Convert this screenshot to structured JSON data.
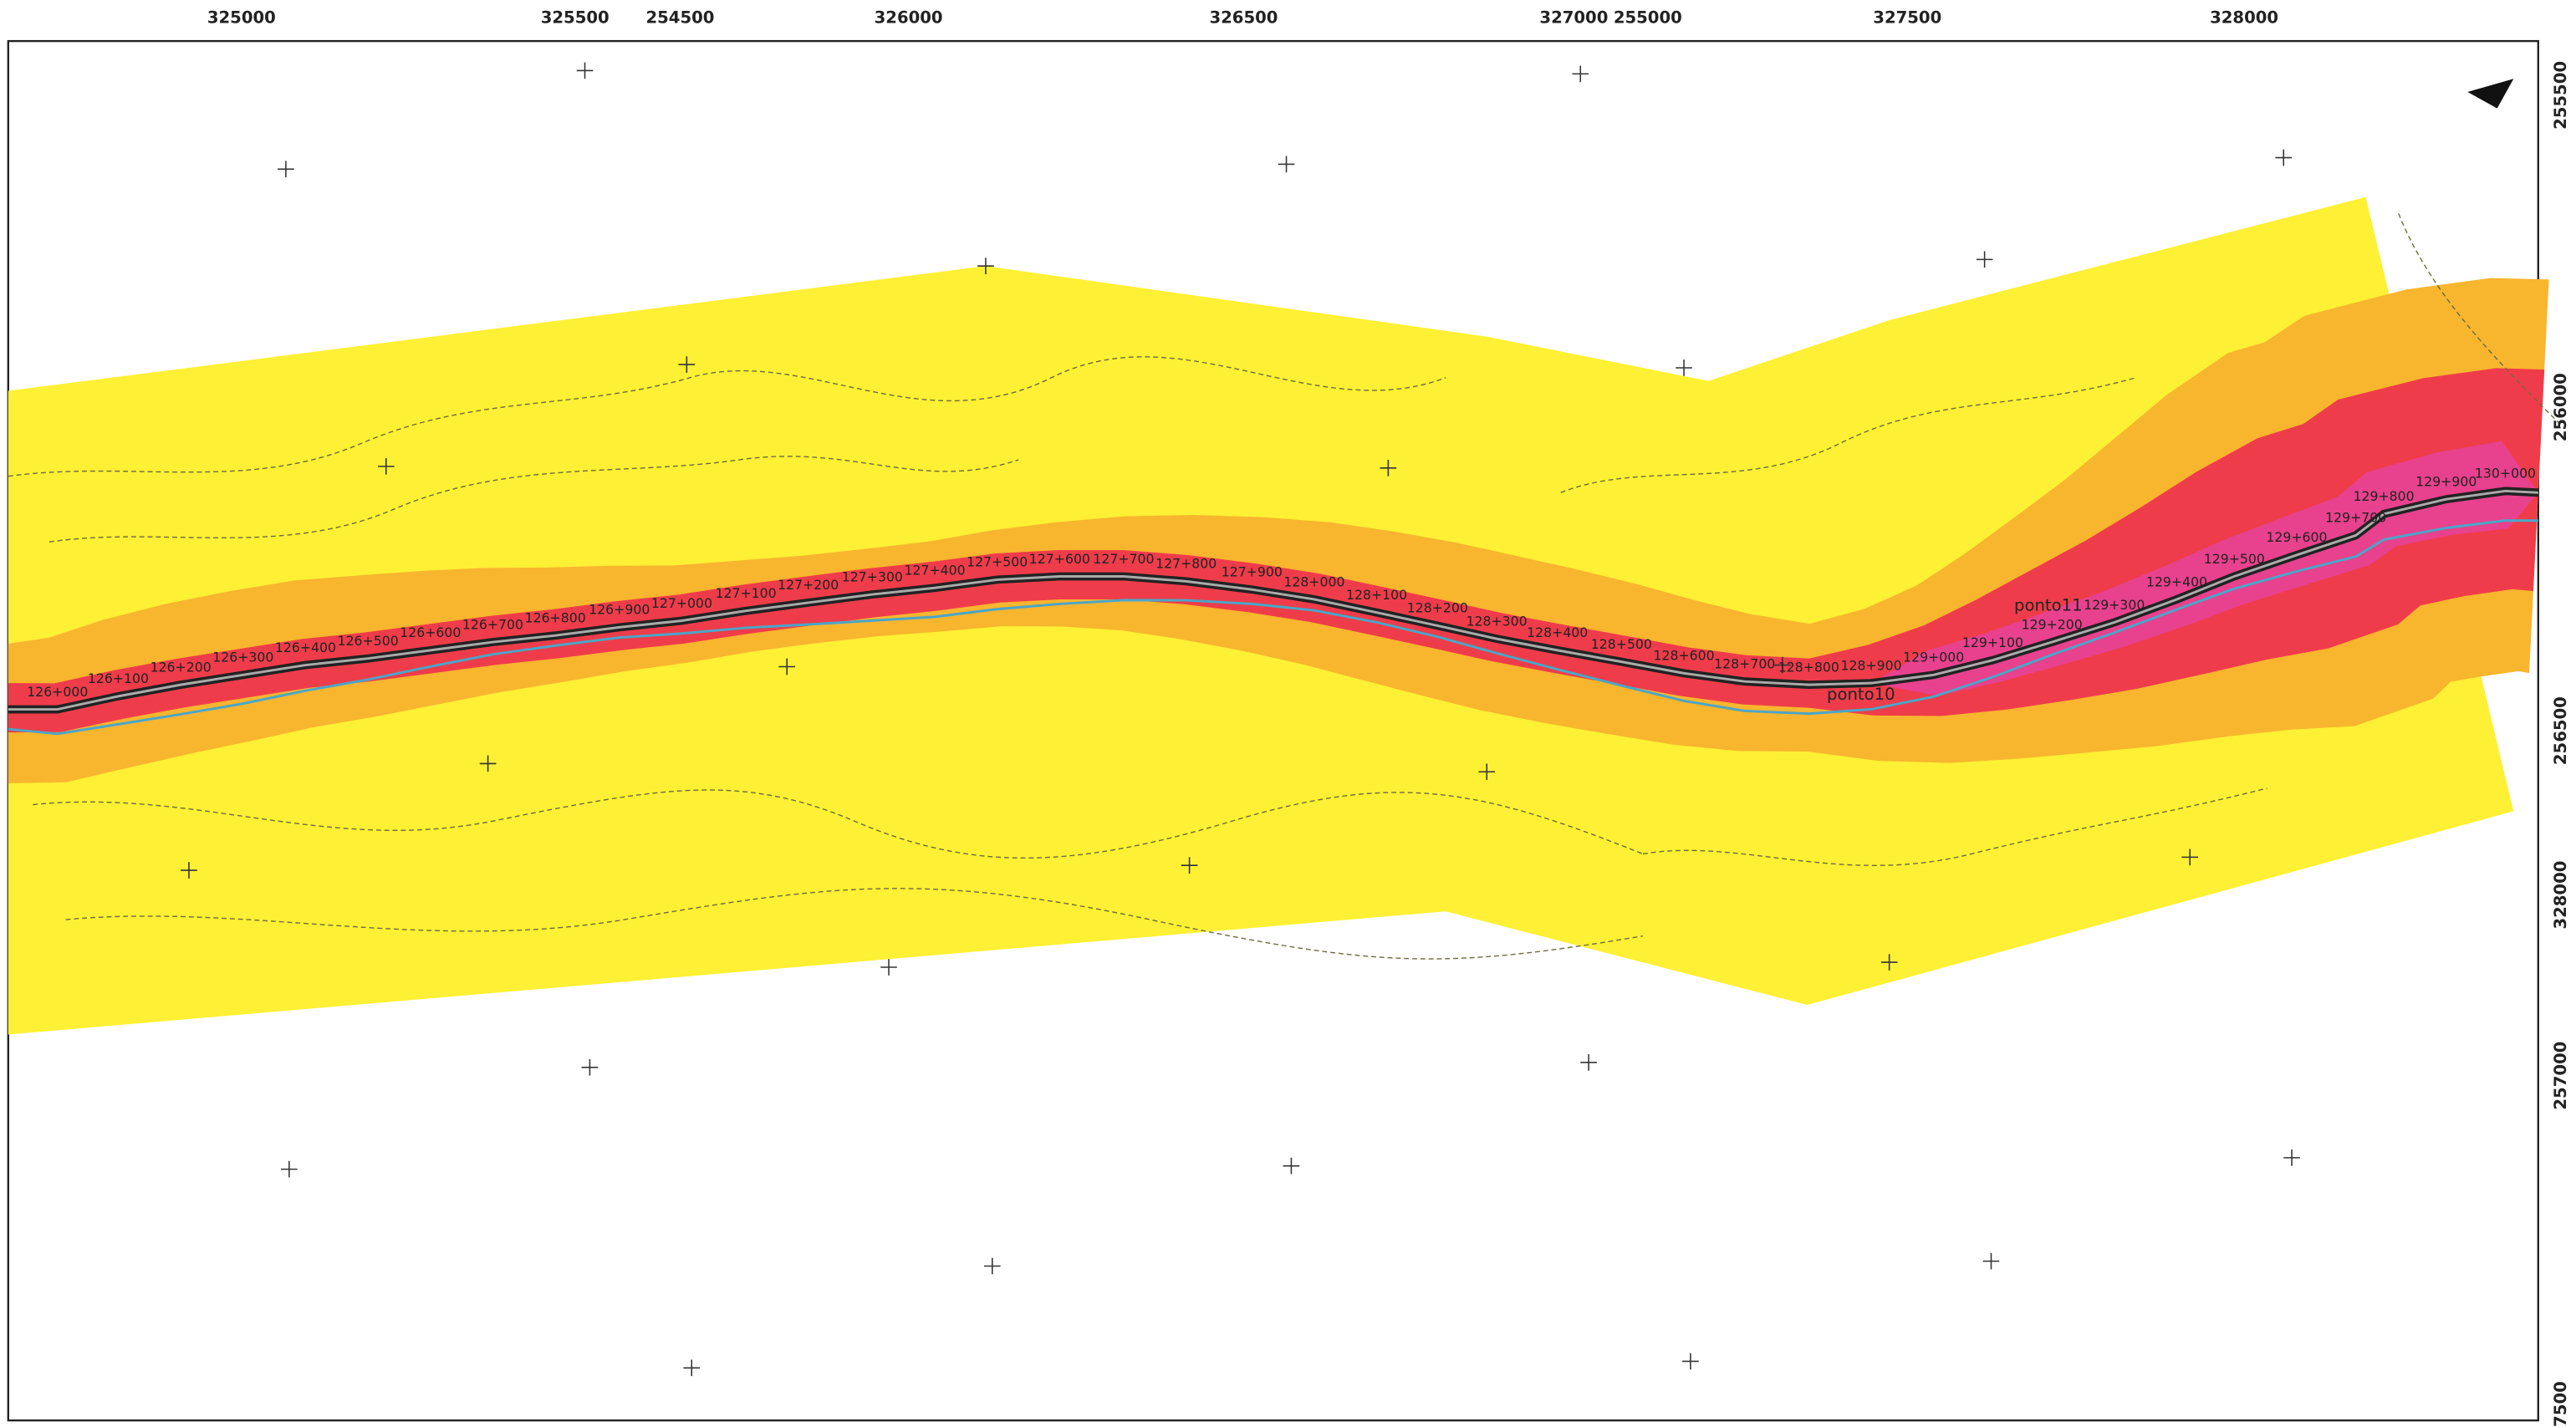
{
  "top_axis": [
    "325000",
    "325500",
    "254500",
    "326000",
    "326500",
    "327000",
    "255000",
    "327500",
    "328000"
  ],
  "right_axis": [
    "255500",
    "256000",
    "256500",
    "328000",
    "257000",
    "7500"
  ],
  "chainages": [
    "126+000",
    "126+100",
    "126+200",
    "126+300",
    "126+400",
    "126+500",
    "126+600",
    "126+700",
    "126+800",
    "126+900",
    "127+000",
    "127+100",
    "127+200",
    "127+300",
    "127+400",
    "127+500",
    "127+600",
    "127+700",
    "127+800",
    "127+900",
    "128+000",
    "128+100",
    "128+200",
    "128+300",
    "128+400",
    "128+500",
    "128+600",
    "128+700",
    "128+800",
    "128+900",
    "129+000",
    "129+100",
    "129+200",
    "129+300",
    "129+400",
    "129+500",
    "129+600",
    "129+700",
    "129+800",
    "129+900",
    "130+000"
  ],
  "points": [
    "ponto10",
    "ponto11"
  ]
}
